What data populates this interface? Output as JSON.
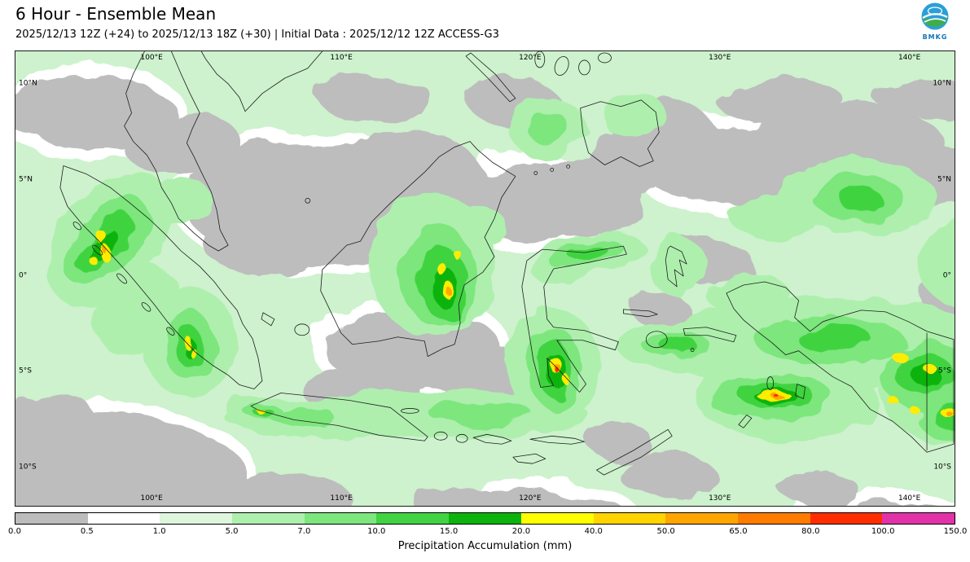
{
  "header": {
    "title": "6 Hour - Ensemble Mean",
    "subtitle": "2025/12/13 12Z (+24) to 2025/12/13 18Z (+30) | Initial Data : 2025/12/12 12Z ACCESS-G3",
    "logo_text": "BMKG"
  },
  "map": {
    "lon_labels": [
      "100°E",
      "110°E",
      "120°E",
      "130°E",
      "140°E"
    ],
    "lat_labels": [
      "10°N",
      "5°N",
      "0°",
      "5°S",
      "10°S"
    ]
  },
  "colorbar": {
    "label": "Precipitation Accumulation (mm)",
    "ticks": [
      "0.0",
      "0.5",
      "1.0",
      "5.0",
      "7.0",
      "10.0",
      "15.0",
      "20.0",
      "40.0",
      "50.0",
      "65.0",
      "80.0",
      "100.0",
      "150.0"
    ],
    "colors": [
      "#bcbcbc",
      "#ffffff",
      "#ddf6dd",
      "#aeefae",
      "#7de67d",
      "#41d341",
      "#0cb30c",
      "#ffff00",
      "#ffd400",
      "#ffa500",
      "#ff7c00",
      "#ff2d00",
      "#e232a8"
    ],
    "units": "mm"
  }
}
